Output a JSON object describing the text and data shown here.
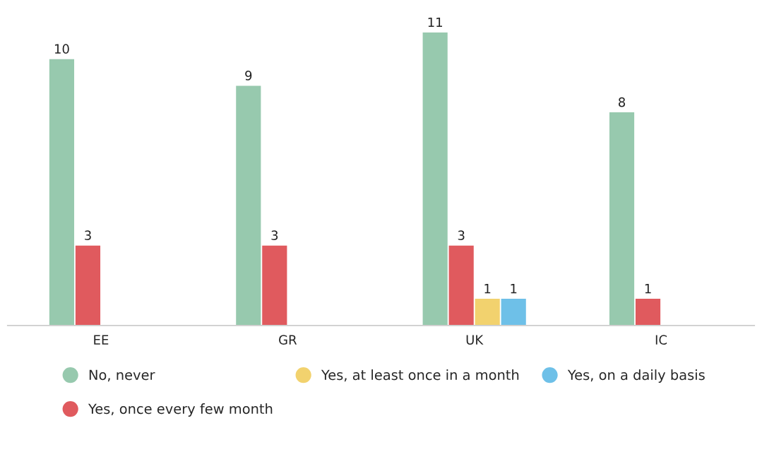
{
  "chart_data": {
    "type": "bar",
    "categories": [
      "EE",
      "GR",
      "UK",
      "IC"
    ],
    "series": [
      {
        "name": "No, never",
        "color": "#97c9ae",
        "values": [
          10,
          9,
          11,
          8
        ]
      },
      {
        "name": "Yes, once every few month",
        "color": "#e05a5e",
        "values": [
          3,
          3,
          3,
          1
        ]
      },
      {
        "name": "Yes, at least once in a month",
        "color": "#f2d26e",
        "values": [
          null,
          null,
          1,
          null
        ]
      },
      {
        "name": "Yes, on a daily basis",
        "color": "#6ec0e8",
        "values": [
          null,
          null,
          1,
          null
        ]
      }
    ],
    "data_labels": true,
    "legend": "bottom",
    "grid": false,
    "tick_labels": "x",
    "marker": "circle"
  }
}
